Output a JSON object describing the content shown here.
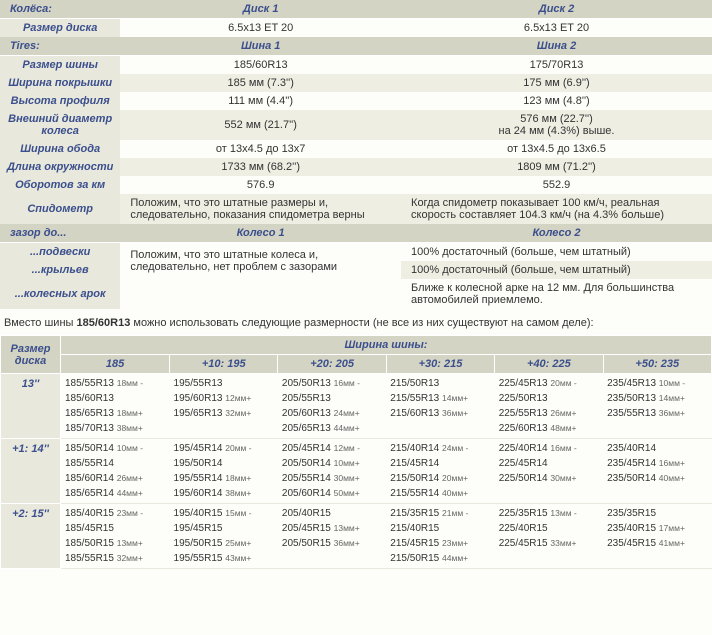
{
  "t1": {
    "sections": [
      {
        "label": "Колёса:",
        "h1": "Диск 1",
        "h2": "Диск 2"
      }
    ],
    "rows1": [
      {
        "label": "Размер диска",
        "c1": "6.5x13 ET 20",
        "c2": "6.5x13 ET 20",
        "striped": false
      }
    ],
    "section2": {
      "label": "Tires:",
      "h1": "Шина 1",
      "h2": "Шина 2"
    },
    "rows2": [
      {
        "label": "Размер шины",
        "c1": "185/60R13",
        "c2": "175/70R13",
        "striped": false
      },
      {
        "label": "Ширина покрышки",
        "c1": "185 мм (7.3'')",
        "c2": "175 мм (6.9'')",
        "striped": true
      },
      {
        "label": "Высота профиля",
        "c1": "111 мм (4.4'')",
        "c2": "123 мм (4.8'')",
        "striped": false
      },
      {
        "label": "Внешний диаметр колеса",
        "c1": "552 мм (21.7'')",
        "c2": "576 мм (22.7'')\nна 24 мм (4.3%) выше.",
        "striped": true
      },
      {
        "label": "Ширина обода",
        "c1": "от 13x4.5 до 13x7",
        "c2": "от 13x4.5 до 13x6.5",
        "striped": false
      },
      {
        "label": "Длина окружности",
        "c1": "1733 мм (68.2'')",
        "c2": "1809 мм (71.2'')",
        "striped": true
      },
      {
        "label": "Оборотов за км",
        "c1": "576.9",
        "c2": "552.9",
        "striped": false
      },
      {
        "label": "Спидометр",
        "c1": "Положим, что это штатные размеры и, следовательно, показания спидометра верны",
        "c2": "Когда спидометр показывает 100 км/ч, реальная скорость составляет 104.3 км/ч (на 4.3% больше)",
        "striped": true,
        "leftAlign": true
      }
    ],
    "section3": {
      "label": "зазор до...",
      "h1": "Колесо 1",
      "h2": "Колесо 2"
    },
    "rows3": [
      {
        "label": "...подвески",
        "c1": "Положим, что это штатные колеса и, следовательно, нет проблем с зазорами",
        "c2": "100% достаточный (больше, чем штатный)",
        "c1rowspan": 2,
        "leftAlign": true
      },
      {
        "label": "...крыльев",
        "c2": "100% достаточный (больше, чем штатный)",
        "leftAlign": true,
        "striped": true
      },
      {
        "label": "...колесных арок",
        "c1": "",
        "c2": "Ближе к колесной арке на 12 мм. Для большинства автомобилей приемлемо.",
        "leftAlign": true
      }
    ]
  },
  "note": {
    "prefix": "Вместо шины ",
    "bold": "185/60R13",
    "suffix": " можно использовать следующие размерности (не все из них существуют на самом деле):"
  },
  "t2": {
    "corner": "Размер диска",
    "toph": "Ширина шины:",
    "cols": [
      "185",
      "+10: 195",
      "+20: 205",
      "+30: 215",
      "+40: 225",
      "+50: 235"
    ],
    "rows": [
      {
        "h": "13''",
        "cells": [
          [
            [
              "185/55R13",
              "18мм -"
            ],
            [
              "185/60R13",
              ""
            ],
            [
              "185/65R13",
              "18мм+"
            ],
            [
              "185/70R13",
              "38мм+"
            ]
          ],
          [
            [
              "195/55R13",
              ""
            ],
            [
              "195/60R13",
              "12мм+"
            ],
            [
              "195/65R13",
              "32мм+"
            ]
          ],
          [
            [
              "205/50R13",
              "16мм -"
            ],
            [
              "205/55R13",
              ""
            ],
            [
              "205/60R13",
              "24мм+"
            ],
            [
              "205/65R13",
              "44мм+"
            ]
          ],
          [
            [
              "215/50R13",
              ""
            ],
            [
              "215/55R13",
              "14мм+"
            ],
            [
              "215/60R13",
              "36мм+"
            ]
          ],
          [
            [
              "225/45R13",
              "20мм -"
            ],
            [
              "225/50R13",
              ""
            ],
            [
              "225/55R13",
              "26мм+"
            ],
            [
              "225/60R13",
              "48мм+"
            ]
          ],
          [
            [
              "235/45R13",
              "10мм -"
            ],
            [
              "235/50R13",
              "14мм+"
            ],
            [
              "235/55R13",
              "36мм+"
            ]
          ]
        ]
      },
      {
        "h": "+1: 14''",
        "cells": [
          [
            [
              "185/50R14",
              "10мм -"
            ],
            [
              "185/55R14",
              ""
            ],
            [
              "185/60R14",
              "26мм+"
            ],
            [
              "185/65R14",
              "44мм+"
            ]
          ],
          [
            [
              "195/45R14",
              "20мм -"
            ],
            [
              "195/50R14",
              ""
            ],
            [
              "195/55R14",
              "18мм+"
            ],
            [
              "195/60R14",
              "38мм+"
            ]
          ],
          [
            [
              "205/45R14",
              "12мм -"
            ],
            [
              "205/50R14",
              "10мм+"
            ],
            [
              "205/55R14",
              "30мм+"
            ],
            [
              "205/60R14",
              "50мм+"
            ]
          ],
          [
            [
              "215/40R14",
              "24мм -"
            ],
            [
              "215/45R14",
              ""
            ],
            [
              "215/50R14",
              "20мм+"
            ],
            [
              "215/55R14",
              "40мм+"
            ]
          ],
          [
            [
              "225/40R14",
              "16мм -"
            ],
            [
              "225/45R14",
              ""
            ],
            [
              "225/50R14",
              "30мм+"
            ]
          ],
          [
            [
              "235/40R14",
              ""
            ],
            [
              "235/45R14",
              "16мм+"
            ],
            [
              "235/50R14",
              "40мм+"
            ]
          ]
        ]
      },
      {
        "h": "+2: 15''",
        "cells": [
          [
            [
              "185/40R15",
              "23мм -"
            ],
            [
              "185/45R15",
              ""
            ],
            [
              "185/50R15",
              "13мм+"
            ],
            [
              "185/55R15",
              "32мм+"
            ]
          ],
          [
            [
              "195/40R15",
              "15мм -"
            ],
            [
              "195/45R15",
              ""
            ],
            [
              "195/50R15",
              "25мм+"
            ],
            [
              "195/55R15",
              "43мм+"
            ]
          ],
          [
            [
              "205/40R15",
              ""
            ],
            [
              "205/45R15",
              "13мм+"
            ],
            [
              "205/50R15",
              "36мм+"
            ]
          ],
          [
            [
              "215/35R15",
              "21мм -"
            ],
            [
              "215/40R15",
              ""
            ],
            [
              "215/45R15",
              "23мм+"
            ],
            [
              "215/50R15",
              "44мм+"
            ]
          ],
          [
            [
              "225/35R15",
              "13мм -"
            ],
            [
              "225/40R15",
              ""
            ],
            [
              "225/45R15",
              "33мм+"
            ]
          ],
          [
            [
              "235/35R15",
              ""
            ],
            [
              "235/40R15",
              "17мм+"
            ],
            [
              "235/45R15",
              "41мм+"
            ]
          ]
        ]
      }
    ]
  }
}
